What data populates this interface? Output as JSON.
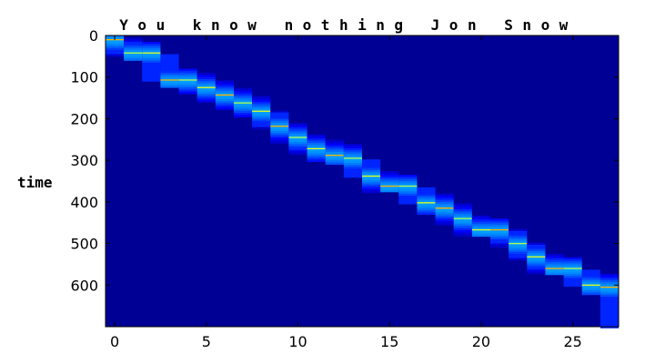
{
  "chart_data": {
    "type": "heatmap",
    "title": "",
    "xlabel": "",
    "ylabel": "time",
    "xlim": [
      -0.5,
      27.5
    ],
    "ylim": [
      700,
      0
    ],
    "y_inverted": true,
    "grid": false,
    "colormap": "jet",
    "top_chars": [
      "Y",
      "o",
      "u",
      " ",
      "k",
      "n",
      "o",
      "w",
      " ",
      "n",
      "o",
      "t",
      "h",
      "i",
      "n",
      "g",
      " ",
      "J",
      "o",
      "n",
      " ",
      "S",
      "n",
      "o",
      "w"
    ],
    "x_ticks": [
      {
        "value": 0,
        "label": "0"
      },
      {
        "value": 5,
        "label": "5"
      },
      {
        "value": 10,
        "label": "10"
      },
      {
        "value": 15,
        "label": "15"
      },
      {
        "value": 20,
        "label": "20"
      },
      {
        "value": 25,
        "label": "25"
      }
    ],
    "y_ticks": [
      {
        "value": 0,
        "label": "0"
      },
      {
        "value": 100,
        "label": "100"
      },
      {
        "value": 200,
        "label": "200"
      },
      {
        "value": 300,
        "label": "300"
      },
      {
        "value": 400,
        "label": "400"
      },
      {
        "value": 500,
        "label": "500"
      },
      {
        "value": 600,
        "label": "600"
      }
    ],
    "alignment_peaks": [
      {
        "x": 0,
        "y": 10
      },
      {
        "x": 1,
        "y": 42
      },
      {
        "x": 2,
        "y": 42
      },
      {
        "x": 3,
        "y": 107
      },
      {
        "x": 4,
        "y": 107
      },
      {
        "x": 5,
        "y": 125
      },
      {
        "x": 6,
        "y": 143
      },
      {
        "x": 7,
        "y": 162
      },
      {
        "x": 8,
        "y": 182
      },
      {
        "x": 9,
        "y": 218
      },
      {
        "x": 10,
        "y": 245
      },
      {
        "x": 11,
        "y": 272
      },
      {
        "x": 12,
        "y": 288
      },
      {
        "x": 13,
        "y": 295
      },
      {
        "x": 14,
        "y": 338
      },
      {
        "x": 15,
        "y": 362
      },
      {
        "x": 16,
        "y": 362
      },
      {
        "x": 17,
        "y": 402
      },
      {
        "x": 18,
        "y": 415
      },
      {
        "x": 19,
        "y": 440
      },
      {
        "x": 20,
        "y": 467
      },
      {
        "x": 21,
        "y": 467
      },
      {
        "x": 22,
        "y": 500
      },
      {
        "x": 23,
        "y": 532
      },
      {
        "x": 24,
        "y": 560
      },
      {
        "x": 25,
        "y": 560
      },
      {
        "x": 26,
        "y": 600
      },
      {
        "x": 27,
        "y": 605
      }
    ]
  }
}
